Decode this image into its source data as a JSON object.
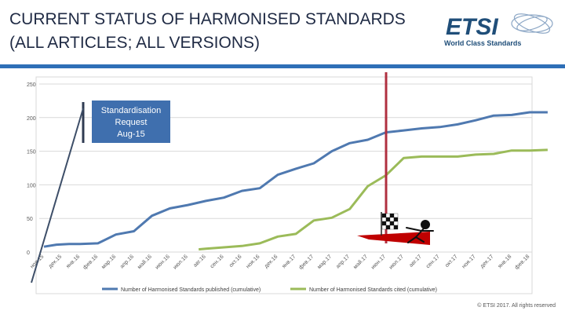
{
  "slide": {
    "title_line1": "CURRENT STATUS OF HARMONISED STANDARDS",
    "title_line2": "(ALL ARTICLES; ALL VERSIONS)",
    "logo_text": "ETSI",
    "logo_subtext": "World Class Standards",
    "footer": "© ETSI 2017. All rights reserved",
    "annotation_line1": "Standardisation",
    "annotation_line2": "Request",
    "annotation_line3": "Aug-15",
    "colors": {
      "title": "#1f2a44",
      "band": "#2e6fb7",
      "annotation_bg": "#3f6fae",
      "flag_pole": "#b03040"
    }
  },
  "chart_data": {
    "type": "line",
    "ylim": [
      0,
      250
    ],
    "yticks": [
      "0",
      "50",
      "100",
      "150",
      "200",
      "250"
    ],
    "grid": true,
    "legend_position": "bottom",
    "categories": [
      "ноя.15",
      "дек.15",
      "янв.16",
      "фев.16",
      "мар.16",
      "апр.16",
      "май.16",
      "июн.16",
      "июл.16",
      "авг.16",
      "сен.16",
      "окт.16",
      "ноя.16",
      "дек.16",
      "янв.17",
      "фев.17",
      "мар.17",
      "апр.17",
      "май.17",
      "июн.17",
      "июл.17",
      "авг.17",
      "сен.17",
      "окт.17",
      "ноя.17",
      "дек.17",
      "янв.18",
      "фев.18"
    ],
    "series": [
      {
        "name": "Number of Harmonised Standards published (cumulative)",
        "color": "#4f79b0",
        "points": [
          [
            0,
            8
          ],
          [
            0.7,
            11
          ],
          [
            1.4,
            12
          ],
          [
            2,
            12
          ],
          [
            3,
            13
          ],
          [
            4,
            26
          ],
          [
            5,
            31
          ],
          [
            6,
            54
          ],
          [
            7,
            65
          ],
          [
            8,
            70
          ],
          [
            9,
            76
          ],
          [
            10,
            81
          ],
          [
            11,
            91
          ],
          [
            12,
            95
          ],
          [
            13,
            115
          ],
          [
            14,
            124
          ],
          [
            15,
            132
          ],
          [
            16,
            150
          ],
          [
            17,
            162
          ],
          [
            18,
            167
          ],
          [
            19,
            178
          ],
          [
            20,
            181
          ],
          [
            21,
            184
          ],
          [
            22,
            186
          ],
          [
            23,
            190
          ],
          [
            24,
            196
          ],
          [
            25,
            203
          ],
          [
            26,
            204
          ],
          [
            27,
            208
          ],
          [
            28,
            208
          ]
        ]
      },
      {
        "name": "Number of Harmonised Standards cited (cumulative)",
        "color": "#9bbb59",
        "points": [
          [
            8.6,
            4
          ],
          [
            9,
            5
          ],
          [
            10,
            7
          ],
          [
            11,
            9
          ],
          [
            12,
            13
          ],
          [
            13,
            23
          ],
          [
            14,
            27
          ],
          [
            15,
            47
          ],
          [
            16,
            51
          ],
          [
            17,
            64
          ],
          [
            18,
            98
          ],
          [
            19,
            114
          ],
          [
            20,
            140
          ],
          [
            21,
            142
          ],
          [
            22,
            142
          ],
          [
            23,
            142
          ],
          [
            24,
            145
          ],
          [
            25,
            146
          ],
          [
            26,
            151
          ],
          [
            27,
            151
          ],
          [
            28,
            152
          ]
        ]
      }
    ]
  }
}
